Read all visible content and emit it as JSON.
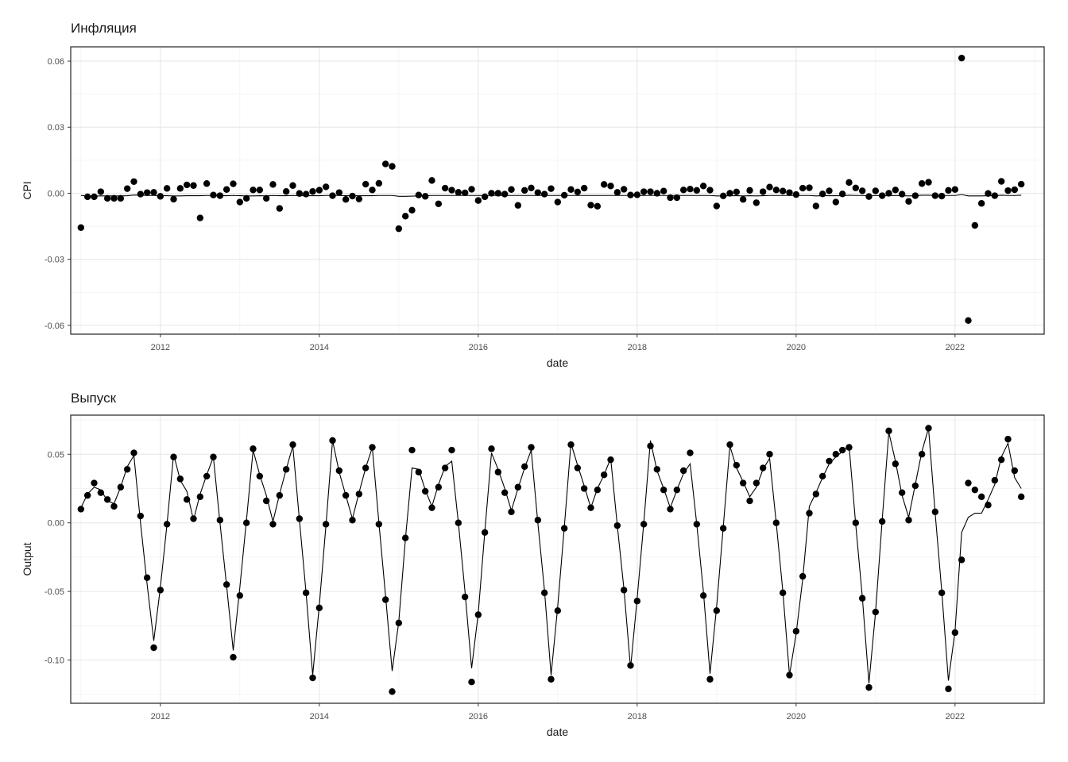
{
  "chart_data": [
    {
      "type": "scatter",
      "title": "Инфляция",
      "xlabel": "date",
      "ylabel": "CPI",
      "xlim": [
        "2010-11-15",
        "2023-02-15"
      ],
      "ylim": [
        -0.064,
        0.0665
      ],
      "x_ticks": [
        "2012",
        "2014",
        "2016",
        "2018",
        "2020",
        "2022"
      ],
      "y_ticks": [
        -0.06,
        -0.03,
        0.0,
        0.03,
        0.06
      ],
      "y_tick_labels": [
        "-0.06",
        "-0.03",
        "0.00",
        "0.03",
        "0.06"
      ],
      "grid": true,
      "legend": "none",
      "start": "2011-01",
      "freq": "monthly",
      "series": [
        {
          "style": "points",
          "values": [
            -0.0156,
            -0.0016,
            -0.0016,
            0.0007,
            -0.0023,
            -0.0023,
            -0.0023,
            0.0021,
            0.0053,
            -0.0004,
            0.0003,
            0.0004,
            -0.0014,
            0.0022,
            -0.0027,
            0.0022,
            0.0038,
            0.0035,
            -0.0112,
            0.0044,
            -0.0008,
            -0.0011,
            0.0017,
            0.0043,
            -0.004,
            -0.0023,
            0.0015,
            0.0015,
            -0.0023,
            0.004,
            -0.0069,
            0.0008,
            0.0035,
            -0.0001,
            -0.0004,
            0.0008,
            0.0014,
            0.0029,
            -0.0011,
            0.0003,
            -0.0028,
            -0.0013,
            -0.0026,
            0.0041,
            0.0015,
            0.0045,
            0.0133,
            0.0122,
            -0.0161,
            -0.0104,
            -0.0077,
            -0.0008,
            -0.0014,
            0.0058,
            -0.0048,
            0.0023,
            0.0014,
            0.0004,
            0.0002,
            0.0018,
            -0.0033,
            -0.0016,
            0.0,
            0.0,
            -0.0004,
            0.0017,
            -0.0055,
            0.0013,
            0.0024,
            0.0003,
            -0.0004,
            0.0021,
            -0.004,
            -0.0009,
            0.0017,
            0.0006,
            0.0023,
            -0.0054,
            -0.0059,
            0.004,
            0.0033,
            0.0004,
            0.0018,
            -0.0008,
            -0.0007,
            0.0007,
            0.0007,
            0.0,
            0.001,
            -0.002,
            -0.002,
            0.0015,
            0.0019,
            0.0013,
            0.0033,
            0.0014,
            -0.0058,
            -0.0012,
            0.0,
            0.0006,
            -0.0028,
            0.0013,
            -0.0043,
            0.0007,
            0.0028,
            0.0015,
            0.001,
            0.0003,
            -0.0006,
            0.0023,
            0.0025,
            -0.0058,
            -0.0003,
            0.0011,
            -0.004,
            -0.0003,
            0.0049,
            0.0024,
            0.0011,
            -0.0015,
            0.0011,
            -0.0011,
            0.0,
            0.0015,
            -0.0004,
            -0.0037,
            -0.0011,
            0.0044,
            0.005,
            -0.0011,
            -0.0013,
            0.0013,
            0.0017,
            0.0614,
            -0.0578,
            -0.0146,
            -0.0046,
            -0.0001,
            -0.0011,
            0.0054,
            0.0012,
            0.0016,
            0.0041
          ]
        },
        {
          "style": "line",
          "values": [
            -0.001,
            -0.0012,
            -0.0013,
            -0.0012,
            -0.0012,
            -0.0012,
            -0.0012,
            -0.0011,
            -0.0008,
            -0.0009,
            -0.001,
            -0.001,
            -0.0011,
            -0.0011,
            -0.0012,
            -0.0012,
            -0.0011,
            -0.0011,
            -0.0011,
            -0.001,
            -0.001,
            -0.0011,
            -0.0011,
            -0.001,
            -0.0011,
            -0.0012,
            -0.0012,
            -0.0011,
            -0.0012,
            -0.001,
            -0.0011,
            -0.0011,
            -0.001,
            -0.0011,
            -0.0011,
            -0.0011,
            -0.0011,
            -0.001,
            -0.001,
            -0.001,
            -0.0011,
            -0.0011,
            -0.0011,
            -0.0011,
            -0.0011,
            -0.001,
            -0.001,
            -0.001,
            -0.0014,
            -0.0014,
            -0.0013,
            -0.0012,
            -0.0011,
            -0.001,
            -0.001,
            -0.001,
            -0.001,
            -0.001,
            -0.001,
            -0.001,
            -0.001,
            -0.001,
            -0.001,
            -0.001,
            -0.001,
            -0.001,
            -0.001,
            -0.001,
            -0.001,
            -0.001,
            -0.001,
            -0.001,
            -0.001,
            -0.001,
            -0.001,
            -0.001,
            -0.001,
            -0.001,
            -0.001,
            -0.001,
            -0.001,
            -0.001,
            -0.001,
            -0.001,
            -0.001,
            -0.001,
            -0.001,
            -0.001,
            -0.001,
            -0.001,
            -0.001,
            -0.001,
            -0.001,
            -0.001,
            -0.001,
            -0.001,
            -0.0012,
            -0.0012,
            -0.0011,
            -0.0011,
            -0.0012,
            -0.0011,
            -0.0012,
            -0.0011,
            -0.001,
            -0.001,
            -0.001,
            -0.001,
            -0.001,
            -0.001,
            -0.001,
            -0.0012,
            -0.0011,
            -0.0011,
            -0.0011,
            -0.0011,
            -0.0009,
            -0.001,
            -0.001,
            -0.0011,
            -0.001,
            -0.0011,
            -0.0011,
            -0.001,
            -0.0011,
            -0.0012,
            -0.0011,
            -0.0009,
            -0.0009,
            -0.001,
            -0.001,
            -0.001,
            -0.001,
            -0.0006,
            -0.0012,
            -0.0012,
            -0.0012,
            -0.0011,
            -0.0011,
            -0.0009,
            -0.001,
            -0.001,
            -0.0009
          ]
        }
      ]
    },
    {
      "type": "scatter",
      "title": "Выпуск",
      "xlabel": "date",
      "ylabel": "Output",
      "xlim": [
        "2010-11-15",
        "2023-02-15"
      ],
      "ylim": [
        -0.1315,
        0.0785
      ],
      "x_ticks": [
        "2012",
        "2014",
        "2016",
        "2018",
        "2020",
        "2022"
      ],
      "y_ticks": [
        -0.1,
        -0.05,
        0.0,
        0.05
      ],
      "y_tick_labels": [
        "-0.10",
        "-0.05",
        "0.00",
        "0.05"
      ],
      "grid": true,
      "legend": "none",
      "start": "2011-01",
      "freq": "monthly",
      "series": [
        {
          "style": "points",
          "values": [
            0.01,
            0.02,
            0.029,
            0.022,
            0.017,
            0.012,
            0.026,
            0.039,
            0.051,
            0.005,
            -0.04,
            -0.091,
            -0.049,
            -0.001,
            0.048,
            0.032,
            0.017,
            0.003,
            0.019,
            0.034,
            0.048,
            0.002,
            -0.045,
            -0.098,
            -0.053,
            0.0,
            0.054,
            0.034,
            0.016,
            -0.001,
            0.02,
            0.039,
            0.057,
            0.003,
            -0.051,
            -0.113,
            -0.062,
            -0.001,
            0.06,
            0.038,
            0.02,
            0.002,
            0.021,
            0.04,
            0.055,
            -0.001,
            -0.056,
            -0.123,
            -0.073,
            -0.011,
            0.053,
            0.037,
            0.023,
            0.011,
            0.026,
            0.04,
            0.053,
            0.0,
            -0.054,
            -0.116,
            -0.067,
            -0.007,
            0.054,
            0.037,
            0.022,
            0.008,
            0.026,
            0.041,
            0.055,
            0.002,
            -0.051,
            -0.114,
            -0.064,
            -0.004,
            0.057,
            0.04,
            0.025,
            0.011,
            0.024,
            0.035,
            0.046,
            -0.002,
            -0.049,
            -0.104,
            -0.057,
            -0.001,
            0.056,
            0.039,
            0.024,
            0.01,
            0.024,
            0.038,
            0.051,
            -0.001,
            -0.053,
            -0.114,
            -0.064,
            -0.004,
            0.057,
            0.042,
            0.029,
            0.016,
            0.029,
            0.04,
            0.05,
            0.0,
            -0.051,
            -0.111,
            -0.079,
            -0.039,
            0.007,
            0.021,
            0.034,
            0.045,
            0.05,
            0.053,
            0.055,
            0.0,
            -0.055,
            -0.12,
            -0.065,
            0.001,
            0.067,
            0.043,
            0.022,
            0.002,
            0.027,
            0.05,
            0.069,
            0.008,
            -0.051,
            -0.121,
            -0.08,
            -0.027,
            0.029,
            0.024,
            0.019,
            0.013,
            0.031,
            0.046,
            0.061,
            0.038,
            0.019
          ]
        },
        {
          "style": "line",
          "values": [
            0.011,
            0.021,
            0.026,
            0.024,
            0.016,
            0.014,
            0.026,
            0.041,
            0.049,
            0.0,
            -0.045,
            -0.086,
            -0.047,
            -0.001,
            0.05,
            0.031,
            0.023,
            0.002,
            0.021,
            0.035,
            0.048,
            0.0,
            -0.046,
            -0.093,
            -0.047,
            0.002,
            0.053,
            0.035,
            0.02,
            0.001,
            0.021,
            0.039,
            0.056,
            0.002,
            -0.051,
            -0.111,
            -0.06,
            -0.002,
            0.06,
            0.037,
            0.02,
            0.003,
            0.022,
            0.04,
            0.055,
            0.0,
            -0.053,
            -0.108,
            -0.072,
            -0.012,
            0.04,
            0.039,
            0.024,
            0.012,
            0.028,
            0.041,
            0.045,
            0.0,
            -0.05,
            -0.106,
            -0.066,
            -0.006,
            0.051,
            0.039,
            0.025,
            0.009,
            0.025,
            0.04,
            0.053,
            0.0,
            -0.049,
            -0.111,
            -0.061,
            -0.003,
            0.058,
            0.042,
            0.027,
            0.011,
            0.025,
            0.035,
            0.047,
            -0.002,
            -0.048,
            -0.106,
            -0.055,
            0.0,
            0.06,
            0.038,
            0.025,
            0.011,
            0.024,
            0.036,
            0.043,
            -0.001,
            -0.05,
            -0.11,
            -0.061,
            -0.003,
            0.056,
            0.04,
            0.03,
            0.019,
            0.026,
            0.039,
            0.047,
            0.0,
            -0.05,
            -0.111,
            -0.081,
            -0.041,
            0.012,
            0.022,
            0.033,
            0.043,
            0.048,
            0.052,
            0.056,
            -0.001,
            -0.054,
            -0.117,
            -0.065,
            0.002,
            0.066,
            0.045,
            0.02,
            0.004,
            0.028,
            0.052,
            0.069,
            0.007,
            -0.05,
            -0.115,
            -0.079,
            -0.007,
            0.004,
            0.007,
            0.007,
            0.017,
            0.028,
            0.048,
            0.058,
            0.033,
            0.025
          ]
        }
      ]
    }
  ]
}
